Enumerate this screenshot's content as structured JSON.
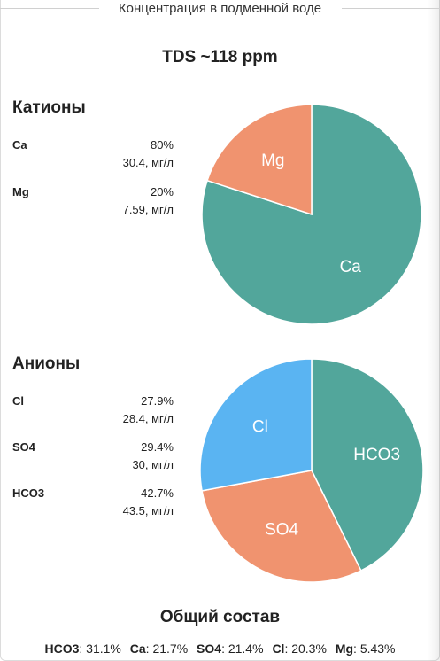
{
  "header": {
    "title": "Концентрация в подменной воде"
  },
  "tds": "TDS ~118 ppm",
  "cations": {
    "title": "Катионы",
    "items": [
      {
        "name": "Ca",
        "percent": "80%",
        "conc": "30.4, мг/л"
      },
      {
        "name": "Mg",
        "percent": "20%",
        "conc": "7.59, мг/л"
      }
    ]
  },
  "anions": {
    "title": "Анионы",
    "items": [
      {
        "name": "Cl",
        "percent": "27.9%",
        "conc": "28.4, мг/л"
      },
      {
        "name": "SO4",
        "percent": "29.4%",
        "conc": "30, мг/л"
      },
      {
        "name": "HCO3",
        "percent": "42.7%",
        "conc": "43.5, мг/л"
      }
    ]
  },
  "summary": {
    "title": "Общий состав",
    "items": [
      {
        "name": "HCO3",
        "value": "31.1%"
      },
      {
        "name": "Ca",
        "value": "21.7%"
      },
      {
        "name": "SO4",
        "value": "21.4%"
      },
      {
        "name": "Cl",
        "value": "20.3%"
      },
      {
        "name": "Mg",
        "value": "5.43%"
      }
    ]
  },
  "colors": {
    "teal": "#52a69b",
    "salmon": "#f0936f",
    "blue": "#5ab4f2"
  },
  "chart_data": [
    {
      "type": "pie",
      "title": "Катионы",
      "slices": [
        {
          "label": "Ca",
          "value": 80,
          "color": "#52a69b"
        },
        {
          "label": "Mg",
          "value": 20,
          "color": "#f0936f"
        }
      ]
    },
    {
      "type": "pie",
      "title": "Анионы",
      "slices": [
        {
          "label": "HCO3",
          "value": 42.7,
          "color": "#52a69b"
        },
        {
          "label": "SO4",
          "value": 29.4,
          "color": "#f0936f"
        },
        {
          "label": "Cl",
          "value": 27.9,
          "color": "#5ab4f2"
        }
      ]
    }
  ]
}
